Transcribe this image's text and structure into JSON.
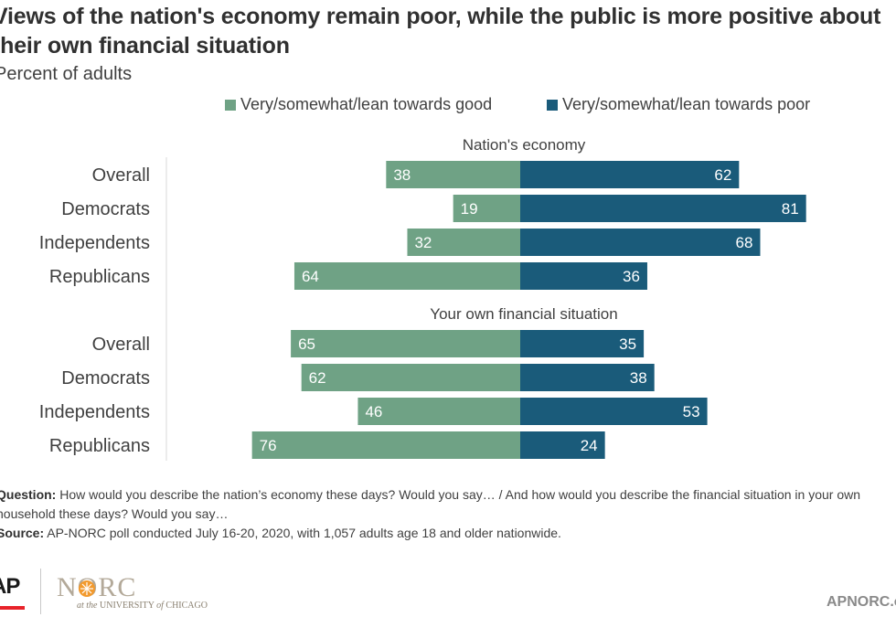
{
  "title_lines": [
    "Views of the nation's economy remain poor, while the public is more positive about",
    "their own financial situation"
  ],
  "subtitle": "Percent of adults",
  "colors": {
    "good": "#6fa285",
    "poor": "#1a5b7a",
    "axis": "#d9d9d9"
  },
  "chart_data": {
    "type": "bar",
    "orientation": "horizontal-diverging",
    "legend_position": "top",
    "series": [
      {
        "name": "Very/somewhat/lean towards good",
        "key": "good"
      },
      {
        "name": "Very/somewhat/lean towards poor",
        "key": "poor"
      }
    ],
    "groups": [
      {
        "label": "Nation's economy",
        "rows": [
          {
            "category": "Overall",
            "good": 38,
            "poor": 62
          },
          {
            "category": "Democrats",
            "good": 19,
            "poor": 81
          },
          {
            "category": "Independents",
            "good": 32,
            "poor": 68
          },
          {
            "category": "Republicans",
            "good": 64,
            "poor": 36
          }
        ]
      },
      {
        "label": "Your own financial situation",
        "rows": [
          {
            "category": "Overall",
            "good": 65,
            "poor": 35
          },
          {
            "category": "Democrats",
            "good": 62,
            "poor": 38
          },
          {
            "category": "Independents",
            "good": 46,
            "poor": 53
          },
          {
            "category": "Republicans",
            "good": 76,
            "poor": 24
          }
        ]
      }
    ]
  },
  "notes": {
    "question_label": "Question:",
    "question_line1": "How would you describe the nation’s economy these days? Would you say… / And how would you describe the financial situation in your own",
    "question_line2": "household these days? Would you say…",
    "source_label": "Source:",
    "source_text": "AP-NORC poll conducted July 16-20, 2020, with 1,057 adults age 18 and older nationwide."
  },
  "footer": {
    "ap_logo": "AP",
    "norc_name": "NORC",
    "norc_at": "at the",
    "norc_university": "UNIVERSITY",
    "norc_of": "of",
    "norc_chicago": "CHICAGO",
    "site": "APNORC.org"
  }
}
